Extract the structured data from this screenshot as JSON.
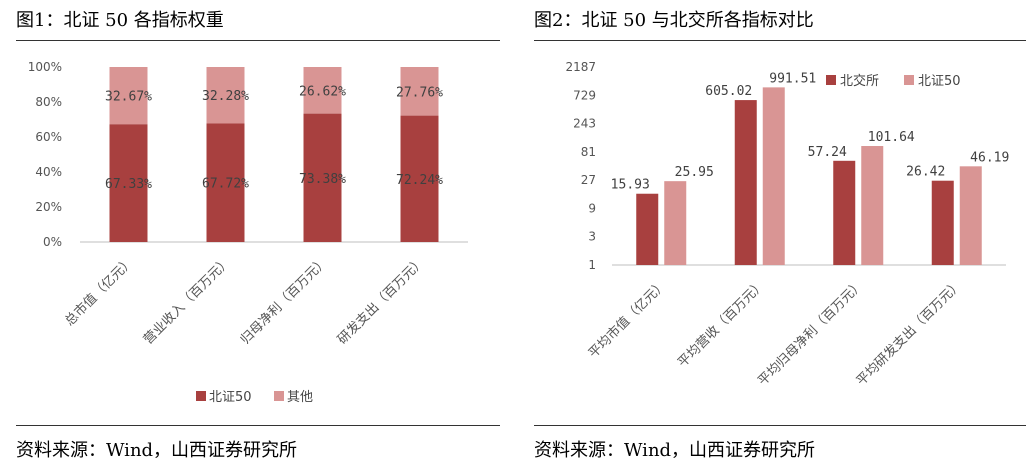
{
  "left": {
    "title": "图1：北证 50 各指标权重",
    "source": "资料来源：Wind，山西证券研究所",
    "chart_data": {
      "type": "bar",
      "stacked": true,
      "percent": true,
      "categories": [
        "总市值（亿元）",
        "营业收入（百万元）",
        "归母净利（百万元）",
        "研发支出（百万元）"
      ],
      "series": [
        {
          "name": "北证50",
          "values": [
            67.33,
            67.72,
            73.38,
            72.24
          ],
          "labels": [
            "67.33%",
            "67.72%",
            "73.38%",
            "72.24%"
          ],
          "color": "#A8403F"
        },
        {
          "name": "其他",
          "values": [
            32.67,
            32.28,
            26.62,
            27.76
          ],
          "labels": [
            "32.67%",
            "32.28%",
            "26.62%",
            "27.76%"
          ],
          "color": "#D99594"
        }
      ],
      "y_ticks": [
        "0%",
        "20%",
        "40%",
        "60%",
        "80%",
        "100%"
      ],
      "ylim": [
        0,
        100
      ],
      "legend_position": "bottom",
      "grid": false
    }
  },
  "right": {
    "title": "图2：北证 50 与北交所各指标对比",
    "source": "资料来源：Wind，山西证券研究所",
    "chart_data": {
      "type": "bar",
      "y_scale": "log3",
      "categories": [
        "平均市值（亿元）",
        "平均营收（百万元）",
        "平均归母净利（百万元）",
        "平均研发支出（百万元）"
      ],
      "series": [
        {
          "name": "北交所",
          "values": [
            15.93,
            605.02,
            57.24,
            26.42
          ],
          "labels": [
            "15.93",
            "605.02",
            "57.24",
            "26.42"
          ],
          "color": "#A8403F"
        },
        {
          "name": "北证50",
          "values": [
            25.95,
            991.51,
            101.64,
            46.19
          ],
          "labels": [
            "25.95",
            "991.51",
            "101.64",
            "46.19"
          ],
          "color": "#D99594"
        }
      ],
      "y_ticks": [
        1,
        3,
        9,
        27,
        81,
        243,
        729,
        2187
      ],
      "ylim": [
        1,
        2187
      ],
      "legend_position": "top-right",
      "grid": false
    }
  }
}
